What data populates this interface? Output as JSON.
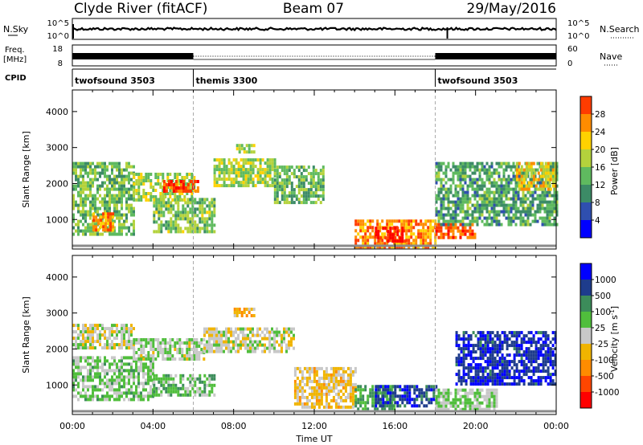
{
  "header": {
    "station": "Clyde River (fitACF)",
    "beam": "Beam 07",
    "date": "29/May/2016"
  },
  "noise_panel": {
    "left_label": "N.Sky",
    "right_label": "N.Search",
    "left_ticks": [
      "10^5",
      "10^0"
    ],
    "right_ticks": [
      "10^5",
      "10^0"
    ]
  },
  "freq_panel": {
    "left_label_1": "Freq.",
    "left_label_2": "[MHz]",
    "right_label": "Nave",
    "left_ticks": [
      "18",
      "8"
    ],
    "right_ticks": [
      "60",
      "0"
    ]
  },
  "cpid": {
    "label": "CPID",
    "segments": [
      {
        "name": "twofsound 3503",
        "start_hour": 0,
        "end_hour": 6
      },
      {
        "name": "themis 3300",
        "start_hour": 6,
        "end_hour": 18
      },
      {
        "name": "twofsound 3503",
        "start_hour": 18,
        "end_hour": 24
      }
    ]
  },
  "colors": {
    "power": [
      "#0000ff",
      "#2f4faf",
      "#3c8b66",
      "#5fba5f",
      "#b4d23c",
      "#ffd200",
      "#ff8c00",
      "#ff3c00",
      "#ff0000"
    ],
    "velocity": [
      "#0000ff",
      "#1e3c8c",
      "#3c8c5a",
      "#50be3c",
      "#c8c8c8",
      "#f0b400",
      "#ff8c00",
      "#ff4600",
      "#ff0000"
    ]
  },
  "chart_data": [
    {
      "type": "heatmap",
      "title": "",
      "xlabel": "",
      "ylabel": "Slant Range [km]",
      "xlim_hours": [
        0,
        24
      ],
      "ylim": [
        180,
        4600
      ],
      "yticks": [
        1000,
        2000,
        3000,
        4000
      ],
      "colorbar": {
        "label": "Power [dB]",
        "ticks": [
          "28",
          "24",
          "20",
          "16",
          "12",
          "8",
          "4"
        ],
        "range": [
          0,
          30
        ]
      },
      "regions": [
        {
          "t": [
            0.0,
            3.0
          ],
          "r": [
            600,
            2600
          ],
          "v": 12
        },
        {
          "t": [
            1.0,
            2.0
          ],
          "r": [
            700,
            1200
          ],
          "v": 22
        },
        {
          "t": [
            3.0,
            6.0
          ],
          "r": [
            1500,
            2300
          ],
          "v": 14
        },
        {
          "t": [
            4.5,
            6.2
          ],
          "r": [
            1800,
            2100
          ],
          "v": 25
        },
        {
          "t": [
            4.0,
            7.0
          ],
          "r": [
            700,
            1600
          ],
          "v": 13
        },
        {
          "t": [
            7.0,
            10.0
          ],
          "r": [
            1900,
            2700
          ],
          "v": 14
        },
        {
          "t": [
            8.0,
            9.0
          ],
          "r": [
            2900,
            3100
          ],
          "v": 15
        },
        {
          "t": [
            10.0,
            12.5
          ],
          "r": [
            1500,
            2500
          ],
          "v": 12
        },
        {
          "t": [
            14.0,
            18.0
          ],
          "r": [
            250,
            1000
          ],
          "v": 22
        },
        {
          "t": [
            15.0,
            16.5
          ],
          "r": [
            400,
            800
          ],
          "v": 29
        },
        {
          "t": [
            18.0,
            20.0
          ],
          "r": [
            500,
            900
          ],
          "v": 24
        },
        {
          "t": [
            18.0,
            24.0
          ],
          "r": [
            900,
            2600
          ],
          "v": 10
        },
        {
          "t": [
            22.0,
            24.0
          ],
          "r": [
            1800,
            2600
          ],
          "v": 18
        }
      ]
    },
    {
      "type": "heatmap",
      "title": "",
      "xlabel": "Time UT",
      "ylabel": "Slant Range [km]",
      "xlim_hours": [
        0,
        24
      ],
      "ylim": [
        180,
        4600
      ],
      "yticks": [
        1000,
        2000,
        3000,
        4000
      ],
      "xticks": [
        "00:00",
        "04:00",
        "08:00",
        "12:00",
        "16:00",
        "20:00",
        "00:00"
      ],
      "colorbar": {
        "label": "Velocity [m s-1]",
        "ticks": [
          "1000",
          "500",
          "100",
          "25",
          "-25",
          "-100",
          "-500",
          "-1000"
        ],
        "range": [
          -1200,
          1200
        ]
      },
      "regions": [
        {
          "t": [
            0.0,
            3.0
          ],
          "r": [
            2000,
            2700
          ],
          "v": 0
        },
        {
          "t": [
            0.0,
            4.0
          ],
          "r": [
            600,
            1800
          ],
          "v": 200
        },
        {
          "t": [
            3.0,
            6.5
          ],
          "r": [
            1700,
            2300
          ],
          "v": 80
        },
        {
          "t": [
            4.0,
            7.0
          ],
          "r": [
            700,
            1300
          ],
          "v": 250
        },
        {
          "t": [
            6.5,
            11.0
          ],
          "r": [
            1900,
            2600
          ],
          "v": 0
        },
        {
          "t": [
            8.0,
            9.0
          ],
          "r": [
            2950,
            3150
          ],
          "v": -300
        },
        {
          "t": [
            11.0,
            14.0
          ],
          "r": [
            400,
            1500
          ],
          "v": -200
        },
        {
          "t": [
            14.0,
            16.0
          ],
          "r": [
            300,
            1000
          ],
          "v": 400
        },
        {
          "t": [
            15.0,
            18.0
          ],
          "r": [
            400,
            1000
          ],
          "v": 800
        },
        {
          "t": [
            18.0,
            21.0
          ],
          "r": [
            300,
            900
          ],
          "v": 150
        },
        {
          "t": [
            19.0,
            24.0
          ],
          "r": [
            1000,
            2500
          ],
          "v": 900
        }
      ]
    }
  ]
}
